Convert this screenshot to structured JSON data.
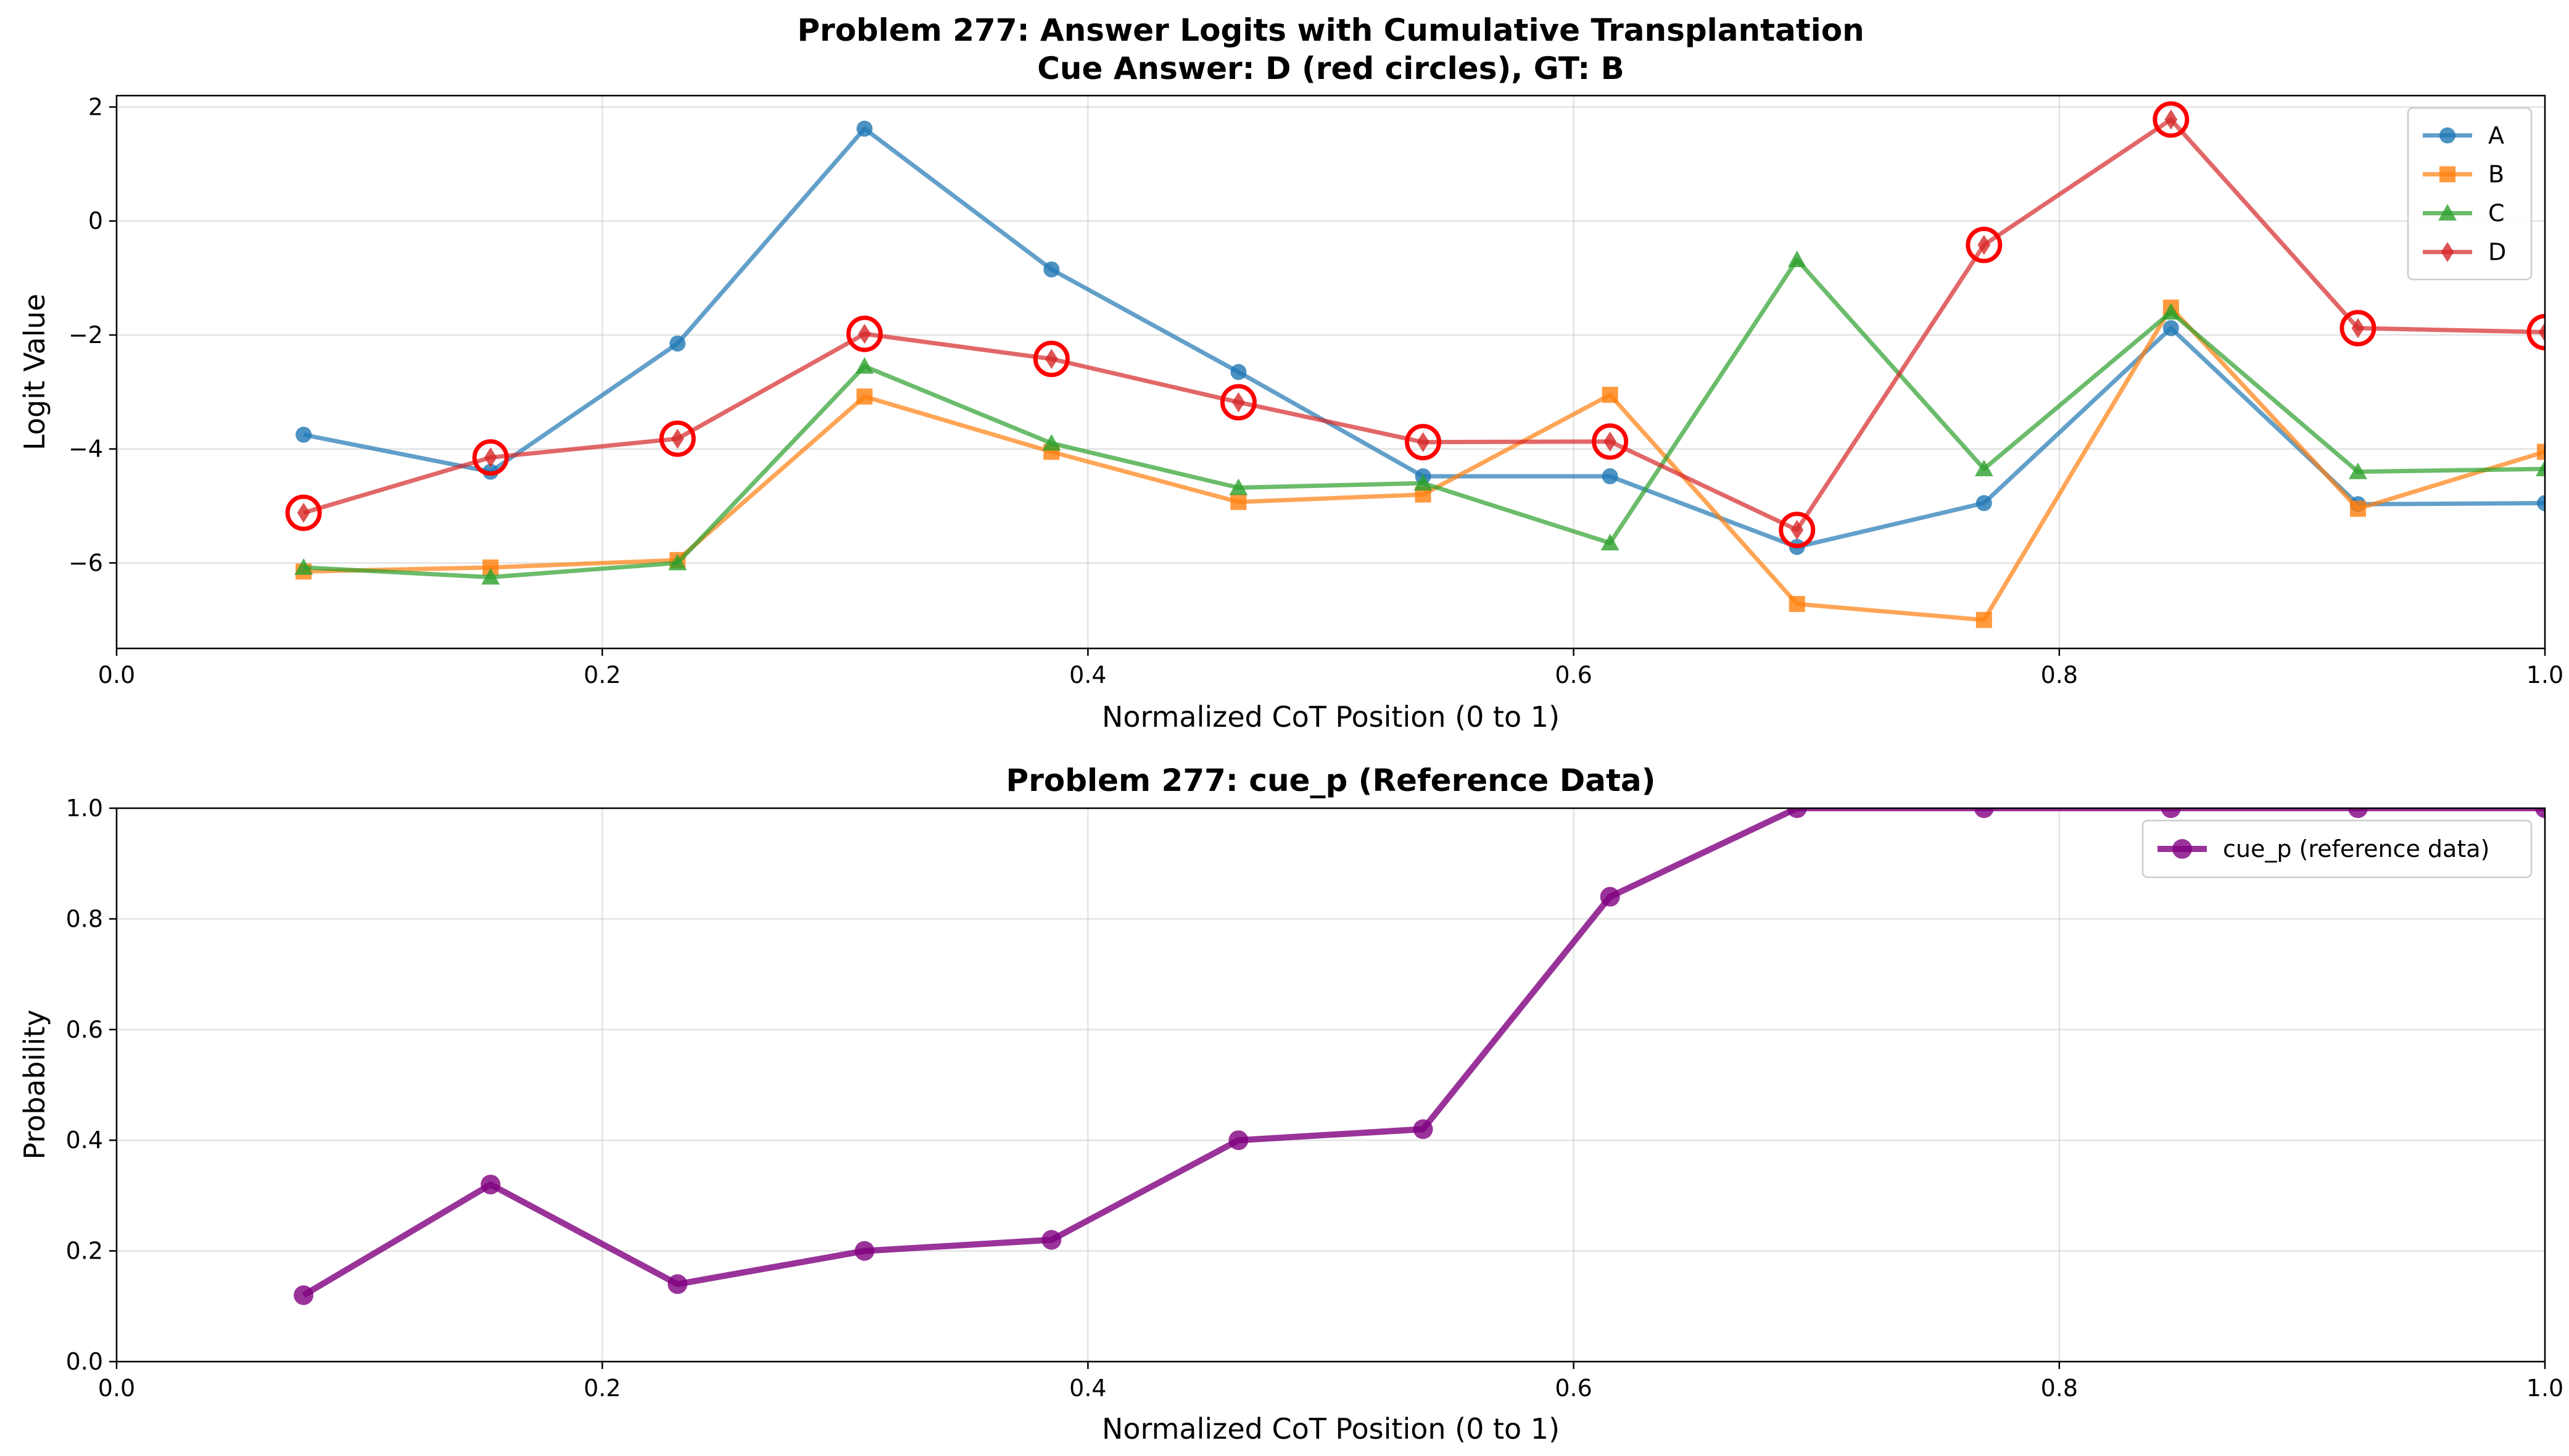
{
  "chart_data": [
    {
      "type": "line",
      "title": "Problem 277: Answer Logits with Cumulative Transplantation",
      "subtitle": "Cue Answer: D (red circles), GT: B",
      "xlabel": "Normalized CoT Position (0 to 1)",
      "ylabel": "Logit Value",
      "xlim": [
        0.0,
        1.0
      ],
      "ylim": [
        -7.5,
        2.2
      ],
      "xticks": [
        "0.0",
        "0.2",
        "0.4",
        "0.6",
        "0.8",
        "1.0"
      ],
      "yticks": [
        "−6",
        "−4",
        "−2",
        "0",
        "2"
      ],
      "grid": true,
      "legend_position": "top-right",
      "x": [
        0.077,
        0.154,
        0.231,
        0.308,
        0.385,
        0.462,
        0.538,
        0.615,
        0.692,
        0.769,
        0.846,
        0.923,
        1.0
      ],
      "series": [
        {
          "name": "A",
          "color": "#1f77b4",
          "marker": "circle",
          "values": [
            -3.75,
            -4.4,
            -2.15,
            1.62,
            -0.85,
            -2.65,
            -4.48,
            -4.48,
            -5.72,
            -4.95,
            -1.88,
            -4.97,
            -4.95
          ]
        },
        {
          "name": "B",
          "color": "#ff7f0e",
          "marker": "square",
          "values": [
            -6.15,
            -6.08,
            -5.95,
            -3.08,
            -4.05,
            -4.93,
            -4.8,
            -3.05,
            -6.72,
            -7.0,
            -1.52,
            -5.05,
            -4.05
          ]
        },
        {
          "name": "C",
          "color": "#2ca02c",
          "marker": "triangle",
          "values": [
            -6.08,
            -6.25,
            -6.0,
            -2.55,
            -3.9,
            -4.68,
            -4.6,
            -5.65,
            -0.68,
            -4.35,
            -1.6,
            -4.4,
            -4.35
          ]
        },
        {
          "name": "D",
          "color": "#d62728",
          "marker": "diamond",
          "values": [
            -5.12,
            -4.15,
            -3.82,
            -1.98,
            -2.42,
            -3.18,
            -3.88,
            -3.87,
            -5.42,
            -0.42,
            1.78,
            -1.88,
            -1.95
          ]
        }
      ],
      "highlight": {
        "series": "D",
        "marker": "open-circle",
        "color": "#ff0000"
      }
    },
    {
      "type": "line",
      "title": "Problem 277: cue_p (Reference Data)",
      "xlabel": "Normalized CoT Position (0 to 1)",
      "ylabel": "Probability",
      "xlim": [
        0.0,
        1.0
      ],
      "ylim": [
        0.0,
        1.0
      ],
      "xticks": [
        "0.0",
        "0.2",
        "0.4",
        "0.6",
        "0.8",
        "1.0"
      ],
      "yticks": [
        "0.0",
        "0.2",
        "0.4",
        "0.6",
        "0.8",
        "1.0"
      ],
      "grid": true,
      "legend_position": "top-right",
      "x": [
        0.077,
        0.154,
        0.231,
        0.308,
        0.385,
        0.462,
        0.538,
        0.615,
        0.692,
        0.769,
        0.846,
        0.923,
        1.0
      ],
      "series": [
        {
          "name": "cue_p (reference data)",
          "color": "#800080",
          "marker": "circle",
          "values": [
            0.12,
            0.32,
            0.14,
            0.2,
            0.22,
            0.4,
            0.42,
            0.84,
            1.0,
            1.0,
            1.0,
            1.0,
            1.0
          ]
        }
      ]
    }
  ]
}
